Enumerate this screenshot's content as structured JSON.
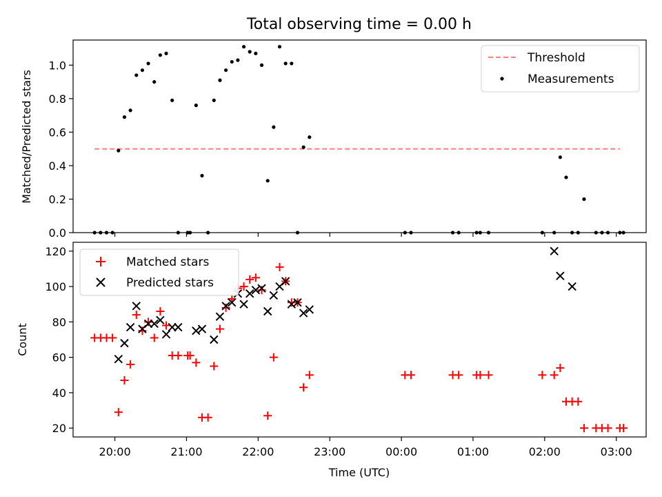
{
  "title": "Total observing time = 0.00 h",
  "xlabel": "Time (UTC)",
  "x_ticks": [
    "20:00",
    "21:00",
    "22:00",
    "23:00",
    "00:00",
    "01:00",
    "02:00",
    "03:00"
  ],
  "chart_data": [
    {
      "type": "scatter",
      "ylabel": "Matched/Predicted stars",
      "ylim": [
        0,
        1.15
      ],
      "yticks": [
        "0.0",
        "0.2",
        "0.4",
        "0.6",
        "0.8",
        "1.0"
      ],
      "legend_position": "top-right",
      "threshold": {
        "name": "Threshold",
        "value": 0.5,
        "x_range": [
          "19:43",
          "03:03"
        ],
        "color": "#ff7f7f"
      },
      "series": [
        {
          "name": "Measurements",
          "marker": "dot",
          "color": "#000000",
          "x": [
            "19:43",
            "19:48",
            "19:53",
            "19:58",
            "20:03",
            "20:08",
            "20:13",
            "20:18",
            "20:23",
            "20:28",
            "20:33",
            "20:38",
            "20:43",
            "20:48",
            "20:53",
            "21:01",
            "21:03",
            "21:08",
            "21:13",
            "21:18",
            "21:23",
            "21:28",
            "21:33",
            "21:38",
            "21:43",
            "21:48",
            "21:53",
            "21:58",
            "22:03",
            "22:08",
            "22:13",
            "22:18",
            "22:23",
            "22:28",
            "22:33",
            "22:38",
            "22:43",
            "00:03",
            "00:08",
            "00:43",
            "00:48",
            "01:03",
            "01:06",
            "01:13",
            "01:58",
            "02:08",
            "02:13",
            "02:18",
            "02:23",
            "02:28",
            "02:33",
            "02:43",
            "02:48",
            "02:53",
            "03:03",
            "03:06"
          ],
          "y": [
            0.0,
            0.0,
            0.0,
            0.0,
            0.49,
            0.69,
            0.73,
            0.94,
            0.97,
            1.01,
            0.9,
            1.06,
            1.07,
            0.79,
            0.0,
            0.0,
            0.0,
            0.76,
            0.34,
            0.0,
            0.79,
            0.91,
            0.97,
            1.02,
            1.03,
            1.11,
            1.08,
            1.07,
            1.0,
            0.31,
            0.63,
            1.11,
            1.01,
            1.01,
            0.0,
            0.51,
            0.57,
            0.0,
            0.0,
            0.0,
            0.0,
            0.0,
            0.0,
            0.0,
            0.0,
            0.0,
            0.45,
            0.33,
            0.0,
            0.0,
            0.2,
            0.0,
            0.0,
            0.0,
            0.0,
            0.0
          ]
        }
      ]
    },
    {
      "type": "scatter",
      "ylabel": "Count",
      "ylim": [
        15,
        125
      ],
      "yticks": [
        "20",
        "40",
        "60",
        "80",
        "100",
        "120"
      ],
      "legend_position": "top-left",
      "series": [
        {
          "name": "Matched stars",
          "marker": "plus",
          "color": "#ff0000",
          "x": [
            "19:43",
            "19:48",
            "19:53",
            "19:58",
            "20:03",
            "20:08",
            "20:13",
            "20:18",
            "20:23",
            "20:28",
            "20:33",
            "20:38",
            "20:43",
            "20:48",
            "20:53",
            "21:01",
            "21:03",
            "21:08",
            "21:13",
            "21:18",
            "21:23",
            "21:28",
            "21:33",
            "21:38",
            "21:43",
            "21:48",
            "21:53",
            "21:58",
            "22:03",
            "22:08",
            "22:13",
            "22:18",
            "22:23",
            "22:28",
            "22:33",
            "22:38",
            "22:43",
            "00:03",
            "00:08",
            "00:43",
            "00:48",
            "01:03",
            "01:06",
            "01:13",
            "01:58",
            "02:08",
            "02:13",
            "02:18",
            "02:23",
            "02:28",
            "02:33",
            "02:43",
            "02:48",
            "02:53",
            "03:03",
            "03:06"
          ],
          "y": [
            71,
            71,
            71,
            71,
            29,
            47,
            56,
            84,
            75,
            80,
            71,
            86,
            78,
            61,
            61,
            61,
            61,
            57,
            26,
            26,
            55,
            76,
            88,
            93,
            99,
            100,
            104,
            105,
            98,
            27,
            60,
            111,
            103,
            91,
            91,
            43,
            50,
            50,
            50,
            50,
            50,
            50,
            50,
            50,
            50,
            50,
            54,
            35,
            35,
            35,
            20,
            20,
            20,
            20,
            20,
            20
          ]
        },
        {
          "name": "Predicted stars",
          "marker": "x",
          "color": "#000000",
          "x": [
            "20:03",
            "20:08",
            "20:13",
            "20:18",
            "20:23",
            "20:28",
            "20:33",
            "20:38",
            "20:43",
            "20:48",
            "20:53",
            "21:08",
            "21:13",
            "21:23",
            "21:28",
            "21:33",
            "21:38",
            "21:43",
            "21:48",
            "21:53",
            "21:58",
            "22:03",
            "22:08",
            "22:13",
            "22:18",
            "22:23",
            "22:28",
            "22:33",
            "22:38",
            "22:43",
            "02:08",
            "02:13",
            "02:23"
          ],
          "y": [
            59,
            68,
            77,
            89,
            76,
            79,
            79,
            81,
            73,
            77,
            77,
            75,
            76,
            70,
            83,
            89,
            91,
            96,
            90,
            96,
            98,
            99,
            86,
            95,
            100,
            103,
            90,
            91,
            85,
            87,
            120,
            106,
            100
          ]
        }
      ]
    }
  ]
}
